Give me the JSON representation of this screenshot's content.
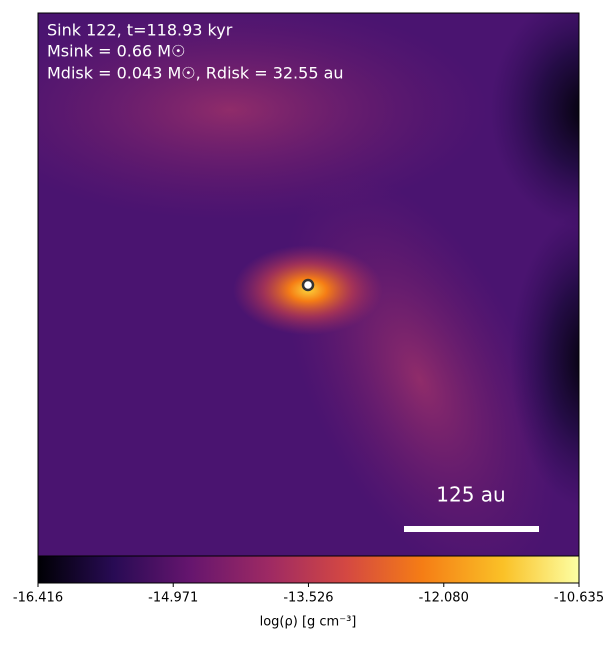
{
  "chart_data": {
    "type": "density-map",
    "title_lines": [
      "Sink 122, t=118.93 kyr",
      "Msink = 0.66 M☉",
      "Mdisk = 0.043 M☉, Rdisk = 32.55 au"
    ],
    "scale_bar_label": "125 au",
    "colorbar": {
      "label": "log(ρ) [g cm⁻³]",
      "clim": [
        -16.416,
        -10.635
      ],
      "ticks": [
        -16.416,
        -14.971,
        -13.526,
        {
          "value": -12.08,
          "label": "-12.080"
        },
        -10.635
      ]
    }
  }
}
